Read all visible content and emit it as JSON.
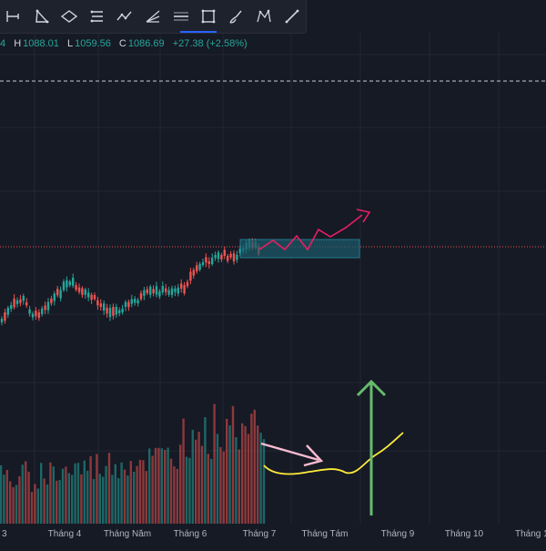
{
  "ohlc": {
    "partial": "4",
    "items": [
      {
        "key": "H",
        "value": "1088.01"
      },
      {
        "key": "L",
        "value": "1059.56"
      },
      {
        "key": "C",
        "value": "1086.69"
      },
      {
        "key": "",
        "value": "+27.38 (+2.58%)"
      }
    ]
  },
  "toolbar": {
    "tools": [
      "trend-line-icon",
      "triangle-pattern-icon",
      "ellipse-icon",
      "parallel-channel-icon",
      "polyline-icon",
      "fib-fan-icon",
      "horizontal-line-icon",
      "rectangle-icon",
      "brush-icon",
      "xabcd-pattern-icon",
      "ruler-icon"
    ]
  },
  "chart_data": {
    "type": "candlestick",
    "x_axis_labels": [
      "Tháng 4",
      "Tháng Năm",
      "Tháng 6",
      "Tháng 7",
      "Tháng Tám",
      "Tháng 9",
      "Tháng 10",
      "Tháng 1"
    ],
    "partial_left_tick": "3",
    "last_close": 1086.69,
    "last_high": 1088.01,
    "last_low": 1059.56,
    "change": 27.38,
    "change_pct": 2.58,
    "grid": true,
    "colors": {
      "up": "#26a69a",
      "down": "#ef5350",
      "background": "#161a25",
      "grid": "#232632",
      "projection_box": "#1b5a6a",
      "forecast_arrow": "#e91e63",
      "volume_arrow": "#f8bbd0",
      "volume_curve": "#ffeb3b",
      "up_arrow": "#66bb6a"
    }
  }
}
